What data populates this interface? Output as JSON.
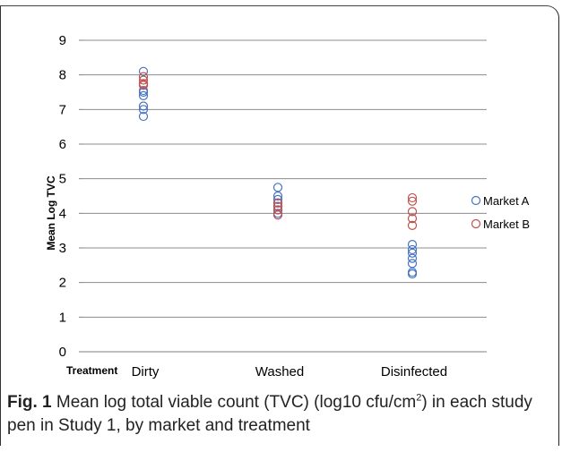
{
  "chart_data": {
    "type": "scatter",
    "ylabel": "Mean Log TVC",
    "xlabel": "Treatment",
    "ylim": [
      0,
      9
    ],
    "yticks": [
      "0",
      "1",
      "2",
      "3",
      "4",
      "5",
      "6",
      "7",
      "8",
      "9"
    ],
    "categories": [
      "Dirty",
      "Washed",
      "Disinfected"
    ],
    "grid": true,
    "legend_position": "right",
    "series": [
      {
        "name": "Market A",
        "color": "#4472c4",
        "points": [
          {
            "x": "Dirty",
            "y": 8.1
          },
          {
            "x": "Dirty",
            "y": 7.55
          },
          {
            "x": "Dirty",
            "y": 7.5
          },
          {
            "x": "Dirty",
            "y": 7.4
          },
          {
            "x": "Dirty",
            "y": 7.1
          },
          {
            "x": "Dirty",
            "y": 7.0
          },
          {
            "x": "Dirty",
            "y": 6.8
          },
          {
            "x": "Washed",
            "y": 4.75
          },
          {
            "x": "Washed",
            "y": 4.5
          },
          {
            "x": "Washed",
            "y": 4.4
          },
          {
            "x": "Washed",
            "y": 4.3
          },
          {
            "x": "Washed",
            "y": 4.2
          },
          {
            "x": "Washed",
            "y": 4.1
          },
          {
            "x": "Washed",
            "y": 4.0
          },
          {
            "x": "Disinfected",
            "y": 3.1
          },
          {
            "x": "Disinfected",
            "y": 2.95
          },
          {
            "x": "Disinfected",
            "y": 2.85
          },
          {
            "x": "Disinfected",
            "y": 2.7
          },
          {
            "x": "Disinfected",
            "y": 2.55
          },
          {
            "x": "Disinfected",
            "y": 2.3
          },
          {
            "x": "Disinfected",
            "y": 2.25
          }
        ]
      },
      {
        "name": "Market B",
        "color": "#c0504d",
        "points": [
          {
            "x": "Dirty",
            "y": 7.95
          },
          {
            "x": "Dirty",
            "y": 7.85
          },
          {
            "x": "Dirty",
            "y": 7.75
          },
          {
            "x": "Dirty",
            "y": 7.7
          },
          {
            "x": "Washed",
            "y": 4.3
          },
          {
            "x": "Washed",
            "y": 4.2
          },
          {
            "x": "Washed",
            "y": 4.1
          },
          {
            "x": "Washed",
            "y": 3.95
          },
          {
            "x": "Disinfected",
            "y": 4.45
          },
          {
            "x": "Disinfected",
            "y": 4.35
          },
          {
            "x": "Disinfected",
            "y": 4.05
          },
          {
            "x": "Disinfected",
            "y": 3.85
          },
          {
            "x": "Disinfected",
            "y": 3.65
          }
        ]
      }
    ]
  },
  "caption": {
    "label": "Fig. 1",
    "text_before_sup": " Mean log total viable count (TVC) (log10 cfu/cm",
    "sup": "2",
    "text_after_sup": ") in each study pen in Study 1, by market and treatment"
  }
}
